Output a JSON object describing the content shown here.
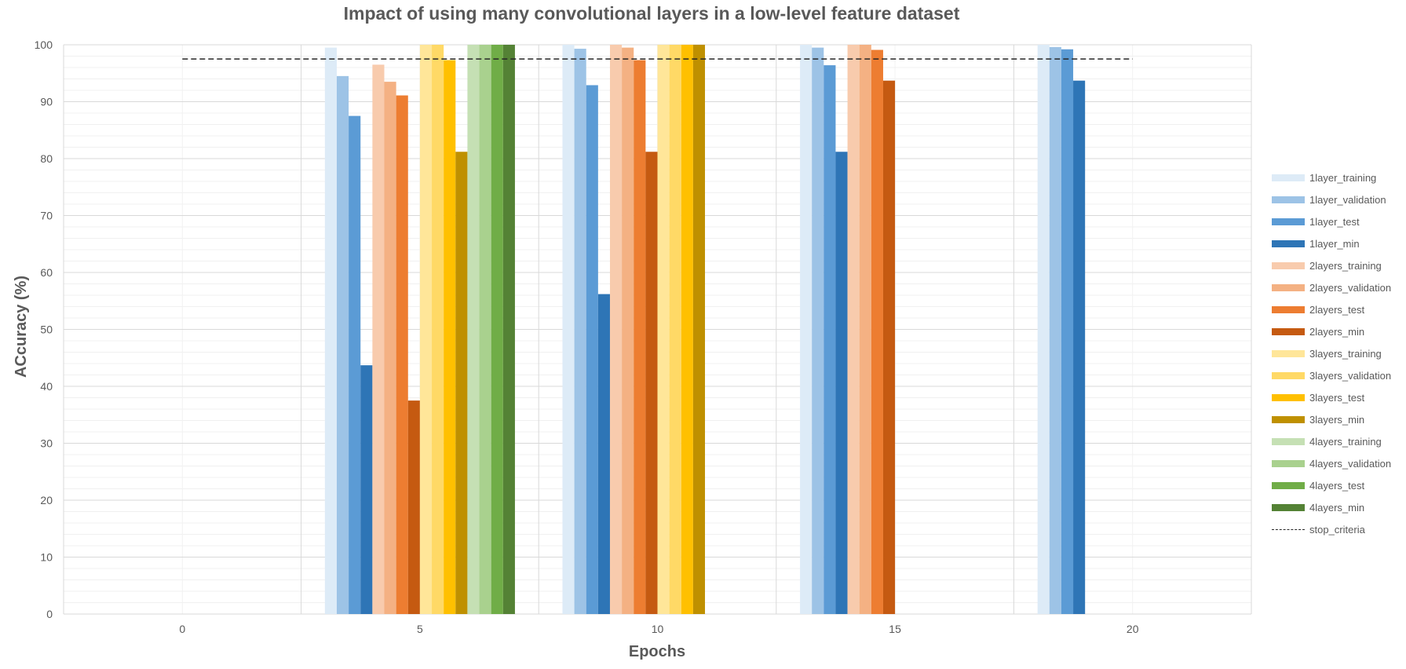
{
  "chart_data": {
    "type": "bar",
    "title": "Impact of using many convolutional layers in a low-level feature dataset",
    "xlabel": "Epochs",
    "ylabel": "ACcuracy (%)",
    "categories": [
      "0",
      "5",
      "10",
      "15",
      "20"
    ],
    "ylim": [
      0,
      100
    ],
    "yticks": [
      0,
      10,
      20,
      30,
      40,
      50,
      60,
      70,
      80,
      90,
      100
    ],
    "grid": true,
    "legend_position": "right",
    "series": [
      {
        "name": "1layer_training",
        "color": "#DDEBF7",
        "values": [
          null,
          99.5,
          100,
          100,
          100
        ]
      },
      {
        "name": "1layer_validation",
        "color": "#9DC3E6",
        "values": [
          null,
          94.5,
          99.3,
          99.5,
          99.6
        ]
      },
      {
        "name": "1layer_test",
        "color": "#5B9BD5",
        "values": [
          null,
          87.5,
          92.9,
          96.4,
          99.2
        ]
      },
      {
        "name": "1layer_min",
        "color": "#2E75B6",
        "values": [
          null,
          43.7,
          56.2,
          81.2,
          93.7
        ]
      },
      {
        "name": "2layers_training",
        "color": "#F8CBAD",
        "values": [
          null,
          96.5,
          100,
          100,
          null
        ]
      },
      {
        "name": "2layers_validation",
        "color": "#F4B183",
        "values": [
          null,
          93.5,
          99.5,
          100,
          null
        ]
      },
      {
        "name": "2layers_test",
        "color": "#ED7D31",
        "values": [
          null,
          91.1,
          97.3,
          99.1,
          null
        ]
      },
      {
        "name": "2layers_min",
        "color": "#C55A11",
        "values": [
          null,
          37.5,
          81.2,
          93.7,
          null
        ]
      },
      {
        "name": "3layers_training",
        "color": "#FFE699",
        "values": [
          null,
          100,
          100,
          null,
          null
        ]
      },
      {
        "name": "3layers_validation",
        "color": "#FFD966",
        "values": [
          null,
          100,
          100,
          null,
          null
        ]
      },
      {
        "name": "3layers_test",
        "color": "#FFC000",
        "values": [
          null,
          97.3,
          100,
          null,
          null
        ]
      },
      {
        "name": "3layers_min",
        "color": "#BF9000",
        "values": [
          null,
          81.2,
          100,
          null,
          null
        ]
      },
      {
        "name": "4layers_training",
        "color": "#C5E0B4",
        "values": [
          null,
          100,
          null,
          null,
          null
        ]
      },
      {
        "name": "4layers_validation",
        "color": "#A9D18E",
        "values": [
          null,
          100,
          null,
          null,
          null
        ]
      },
      {
        "name": "4layers_test",
        "color": "#70AD47",
        "values": [
          null,
          100,
          null,
          null,
          null
        ]
      },
      {
        "name": "4layers_min",
        "color": "#548235",
        "values": [
          null,
          100,
          null,
          null,
          null
        ]
      }
    ],
    "reference_line": {
      "name": "stop_criteria",
      "value": 97.5,
      "x_range": [
        "0",
        "20"
      ],
      "color": "#262626",
      "style": "dashed"
    }
  }
}
